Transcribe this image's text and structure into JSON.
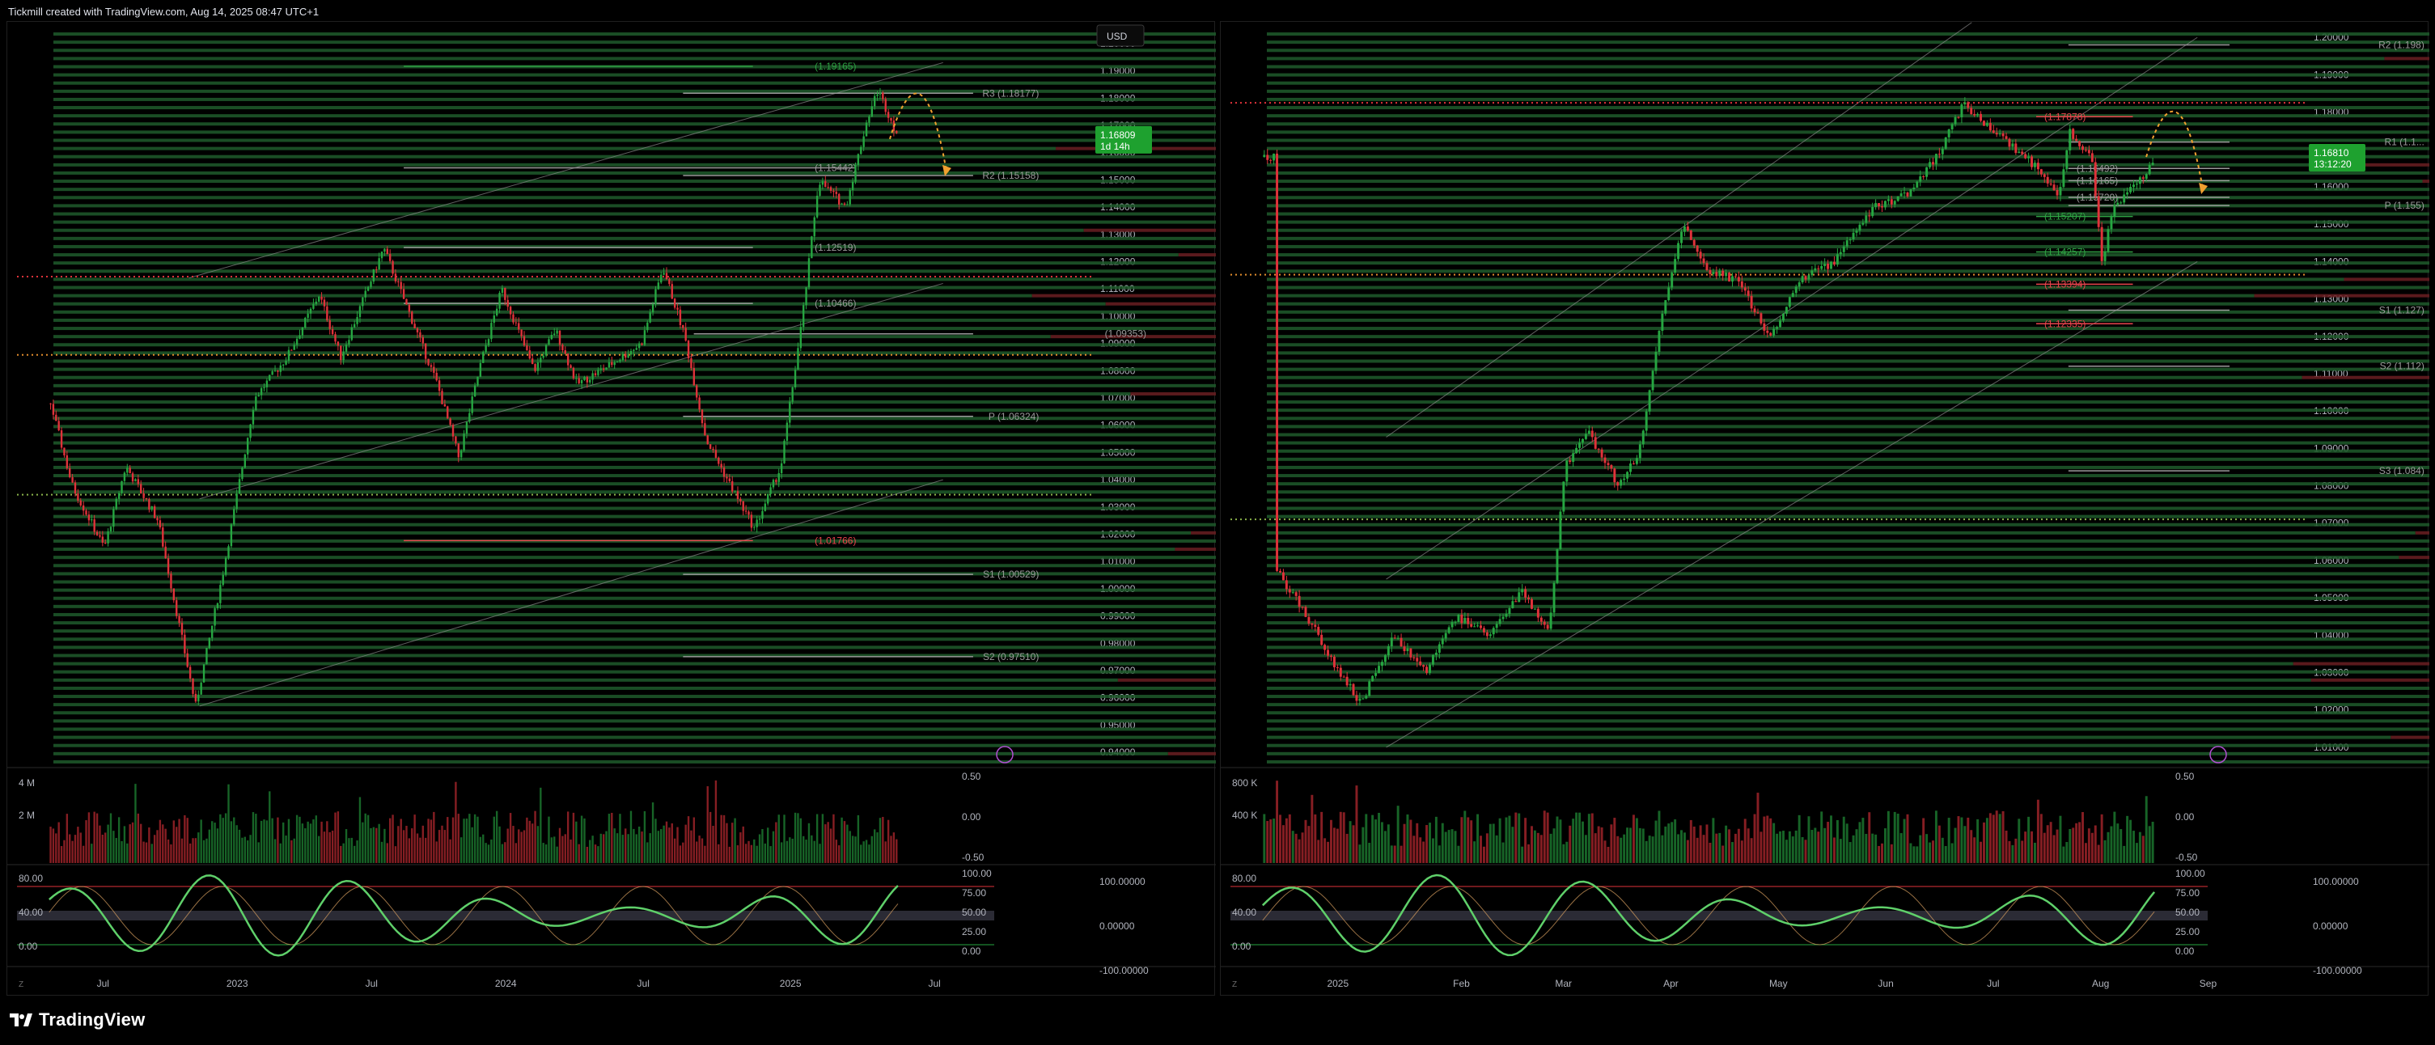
{
  "header": {
    "title": "Tickmill created with TradingView.com, Aug 14, 2025 08:47 UTC+1"
  },
  "footer": {
    "logo_text": "TradingView",
    "logo_icon": "tradingview-logo"
  },
  "colors": {
    "up": "#26a641",
    "down": "#e0323a",
    "fib_green": "#2ea043",
    "fib_red": "#e8444c",
    "pivot": "#9a9a9a",
    "poc": "#e08c2c",
    "sup": "#8ab34a",
    "accent_orange": "#f0a030",
    "rsi_green": "#5fd06a",
    "rsi_red": "#ff5a5a"
  },
  "chart_data": [
    {
      "id": "left",
      "type": "candlestick",
      "currency_button": "USD",
      "price_label": "1.16809",
      "countdown_label": "1d 14h",
      "ylim": [
        0.935,
        1.205
      ],
      "y_ticks": [
        "1.20000",
        "1.19000",
        "1.18000",
        "1.17000",
        "1.16000",
        "1.15000",
        "1.14000",
        "1.13000",
        "1.12000",
        "1.11000",
        "1.10000",
        "1.09000",
        "1.08000",
        "1.07000",
        "1.06000",
        "1.05000",
        "1.04000",
        "1.03000",
        "1.02000",
        "1.01000",
        "1.00000",
        "0.99000",
        "0.98000",
        "0.97000",
        "0.96000",
        "0.95000",
        "0.94000"
      ],
      "x_ticks": [
        "Jul",
        "2023",
        "Jul",
        "2024",
        "Jul",
        "2025",
        "Jul"
      ],
      "x_tick_pos": [
        0.08,
        0.205,
        0.33,
        0.455,
        0.583,
        0.72,
        0.854
      ],
      "levels": [
        {
          "label": "(1.19165)",
          "value": 1.19165,
          "kind": "fib_green",
          "from": 0.36,
          "to": 0.685
        },
        {
          "label": "R3 (1.18177)",
          "value": 1.18177,
          "kind": "pivot",
          "from": 0.62,
          "to": 0.89
        },
        {
          "label": "(1.15442)",
          "value": 1.15442,
          "kind": "pivot",
          "from": 0.36,
          "to": 0.78
        },
        {
          "label": "R2 (1.15158)",
          "value": 1.15158,
          "kind": "pivot",
          "from": 0.62,
          "to": 0.89
        },
        {
          "label": "(1.12519)",
          "value": 1.12519,
          "kind": "pivot",
          "from": 0.36,
          "to": 0.685
        },
        {
          "label": "(1.10466)",
          "value": 1.10466,
          "kind": "pivot",
          "from": 0.36,
          "to": 0.685
        },
        {
          "label": "(1.09353)",
          "value": 1.09353,
          "kind": "pivot",
          "from": 0.63,
          "to": 0.89
        },
        {
          "label": "P (1.06324)",
          "value": 1.06324,
          "kind": "pivot",
          "from": 0.62,
          "to": 0.89
        },
        {
          "label": "(1.01766)",
          "value": 1.01766,
          "kind": "fib_red",
          "from": 0.36,
          "to": 0.685
        },
        {
          "label": "S1 (1.00529)",
          "value": 1.00529,
          "kind": "pivot",
          "from": 0.62,
          "to": 0.89
        },
        {
          "label": "S2 (0.97510)",
          "value": 0.9751,
          "kind": "pivot",
          "from": 0.62,
          "to": 0.89
        }
      ],
      "dotted_lines": [
        {
          "value": 1.1145,
          "kind": "down"
        },
        {
          "value": 1.0858,
          "kind": "poc"
        },
        {
          "value": 1.0345,
          "kind": "sup"
        }
      ],
      "channel": [
        [
          0.16,
          1.114,
          0.862,
          1.193
        ],
        [
          0.17,
          1.033,
          0.862,
          1.112
        ],
        [
          0.17,
          0.957,
          0.862,
          1.04
        ]
      ],
      "price_path": [
        [
          0.0,
          1.113
        ],
        [
          0.05,
          1.038
        ],
        [
          0.08,
          1.015
        ],
        [
          0.1,
          1.045
        ],
        [
          0.13,
          1.025
        ],
        [
          0.165,
          0.957
        ],
        [
          0.19,
          1.005
        ],
        [
          0.22,
          1.07
        ],
        [
          0.25,
          1.085
        ],
        [
          0.28,
          1.108
        ],
        [
          0.3,
          1.085
        ],
        [
          0.34,
          1.125
        ],
        [
          0.36,
          1.105
        ],
        [
          0.39,
          1.075
        ],
        [
          0.41,
          1.048
        ],
        [
          0.43,
          1.082
        ],
        [
          0.45,
          1.11
        ],
        [
          0.48,
          1.08
        ],
        [
          0.5,
          1.095
        ],
        [
          0.52,
          1.075
        ],
        [
          0.55,
          1.082
        ],
        [
          0.58,
          1.09
        ],
        [
          0.6,
          1.118
        ],
        [
          0.62,
          1.093
        ],
        [
          0.64,
          1.055
        ],
        [
          0.66,
          1.04
        ],
        [
          0.685,
          1.022
        ],
        [
          0.71,
          1.045
        ],
        [
          0.73,
          1.1
        ],
        [
          0.745,
          1.15
        ],
        [
          0.77,
          1.14
        ],
        [
          0.79,
          1.172
        ],
        [
          0.8,
          1.183
        ],
        [
          0.82,
          1.165
        ]
      ],
      "volume_ticks": [
        "4 M",
        "2 M"
      ],
      "volume_scale_ticks": [
        "0.50",
        "0.00",
        "-0.50"
      ],
      "osc_ticks": [
        "80.00",
        "40.00",
        "0.00"
      ],
      "osc_right_ticks": [
        "100.00",
        "75.00",
        "50.00",
        "25.00",
        "0.00"
      ],
      "osc_far_ticks": [
        "100.00000",
        "0.00000",
        "-100.00000"
      ]
    },
    {
      "id": "right",
      "type": "candlestick",
      "price_label": "1.16810",
      "countdown_label": "13:12:20",
      "ylim": [
        1.005,
        1.202
      ],
      "y_ticks": [
        "1.20000",
        "1.19000",
        "1.18000",
        "1.17000",
        "1.16000",
        "1.15000",
        "1.14000",
        "1.13000",
        "1.12000",
        "1.11000",
        "1.10000",
        "1.09000",
        "1.08000",
        "1.07000",
        "1.06000",
        "1.05000",
        "1.04000",
        "1.03000",
        "1.02000",
        "1.01000"
      ],
      "x_ticks": [
        "2025",
        "Feb",
        "Mar",
        "Apr",
        "May",
        "Jun",
        "Jul",
        "Aug",
        "Sep"
      ],
      "x_tick_pos": [
        0.1,
        0.215,
        0.31,
        0.41,
        0.51,
        0.61,
        0.71,
        0.81,
        0.91
      ],
      "levels": [
        {
          "label": "R2 (1.198)",
          "value": 1.198,
          "kind": "pivot",
          "from": 0.78,
          "to": 0.93
        },
        {
          "label": "(1.17878)",
          "value": 1.17878,
          "kind": "fib_red",
          "from": 0.75,
          "to": 0.84
        },
        {
          "label": "R1 (1.1...",
          "value": 1.172,
          "kind": "pivot",
          "from": 0.78,
          "to": 0.93
        },
        {
          "label": "(1.16492)",
          "value": 1.16492,
          "kind": "pivot",
          "from": 0.78,
          "to": 0.93
        },
        {
          "label": "(1.16165)",
          "value": 1.16165,
          "kind": "pivot",
          "from": 0.78,
          "to": 0.93
        },
        {
          "label": "(1.15720)",
          "value": 1.1572,
          "kind": "pivot",
          "from": 0.78,
          "to": 0.93
        },
        {
          "label": "P (1.155)",
          "value": 1.155,
          "kind": "pivot",
          "from": 0.78,
          "to": 0.93
        },
        {
          "label": "(1.15207)",
          "value": 1.15207,
          "kind": "fib_green",
          "from": 0.75,
          "to": 0.84
        },
        {
          "label": "(1.14257)",
          "value": 1.14257,
          "kind": "fib_green",
          "from": 0.75,
          "to": 0.84
        },
        {
          "label": "(1.13394)",
          "value": 1.13394,
          "kind": "fib_red",
          "from": 0.75,
          "to": 0.84
        },
        {
          "label": "S1 (1.127)",
          "value": 1.127,
          "kind": "pivot",
          "from": 0.78,
          "to": 0.93
        },
        {
          "label": "(1.12335)",
          "value": 1.12335,
          "kind": "fib_red",
          "from": 0.75,
          "to": 0.84
        },
        {
          "label": "S2 (1.112)",
          "value": 1.112,
          "kind": "pivot",
          "from": 0.78,
          "to": 0.93
        },
        {
          "label": "S3 (1.084)",
          "value": 1.084,
          "kind": "pivot",
          "from": 0.78,
          "to": 0.93
        }
      ],
      "dotted_lines": [
        {
          "value": 1.1825,
          "kind": "down"
        },
        {
          "value": 1.1365,
          "kind": "poc"
        },
        {
          "value": 1.071,
          "kind": "sup"
        }
      ],
      "channel": [
        [
          0.145,
          1.093,
          0.69,
          1.204
        ],
        [
          0.145,
          1.055,
          0.9,
          1.2
        ],
        [
          0.145,
          1.01,
          0.9,
          1.14
        ]
      ],
      "price_path": [
        [
          0.04,
          1.058
        ],
        [
          0.07,
          1.045
        ],
        [
          0.1,
          1.03
        ],
        [
          0.12,
          1.022
        ],
        [
          0.15,
          1.04
        ],
        [
          0.18,
          1.03
        ],
        [
          0.21,
          1.045
        ],
        [
          0.24,
          1.04
        ],
        [
          0.27,
          1.052
        ],
        [
          0.295,
          1.04
        ],
        [
          0.31,
          1.085
        ],
        [
          0.33,
          1.095
        ],
        [
          0.36,
          1.08
        ],
        [
          0.38,
          1.09
        ],
        [
          0.4,
          1.125
        ],
        [
          0.42,
          1.15
        ],
        [
          0.44,
          1.138
        ],
        [
          0.47,
          1.135
        ],
        [
          0.5,
          1.12
        ],
        [
          0.53,
          1.135
        ],
        [
          0.56,
          1.14
        ],
        [
          0.6,
          1.155
        ],
        [
          0.63,
          1.158
        ],
        [
          0.66,
          1.17
        ],
        [
          0.68,
          1.182
        ],
        [
          0.71,
          1.175
        ],
        [
          0.73,
          1.17
        ],
        [
          0.75,
          1.165
        ],
        [
          0.77,
          1.158
        ],
        [
          0.78,
          1.175
        ],
        [
          0.8,
          1.168
        ],
        [
          0.81,
          1.14
        ],
        [
          0.82,
          1.155
        ],
        [
          0.84,
          1.16
        ],
        [
          0.86,
          1.168
        ]
      ],
      "volume_ticks": [
        "800 K",
        "400 K"
      ],
      "volume_scale_ticks": [
        "0.50",
        "0.00",
        "-0.50"
      ],
      "osc_ticks": [
        "80.00",
        "40.00",
        "0.00"
      ],
      "osc_right_ticks": [
        "100.00",
        "75.00",
        "50.00",
        "25.00",
        "0.00"
      ],
      "osc_far_ticks": [
        "100.00000",
        "0.00000",
        "-100.00000"
      ]
    }
  ]
}
